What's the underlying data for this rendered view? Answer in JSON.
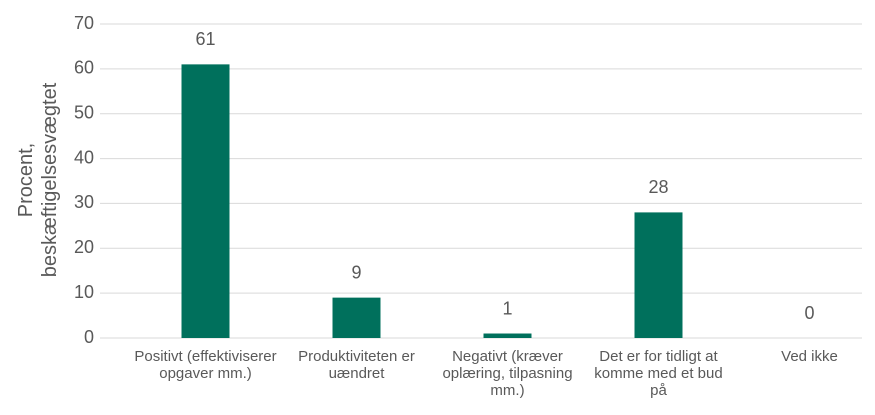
{
  "chart_data": {
    "type": "bar",
    "y_label": "Procent, beskæftigelsesvægtet",
    "categories": [
      "Positivt (effektiviserer opgaver mm.)",
      "Produktiviteten er uændret",
      "Negativt (kræver oplæring, tilpasning mm.)",
      "Det er for tidligt at komme med et bud på",
      "Ved ikke"
    ],
    "values": [
      61,
      9,
      1,
      28,
      0
    ],
    "color": "#00705c",
    "ylim": [
      0,
      70
    ],
    "yticks": [
      0,
      10,
      20,
      30,
      40,
      50,
      60,
      70
    ],
    "grid": true
  }
}
